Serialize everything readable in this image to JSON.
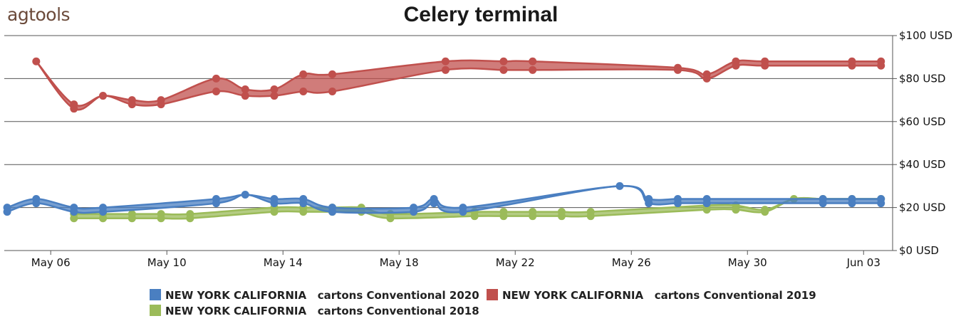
{
  "brand": {
    "logo_text": "agtools"
  },
  "chart_data": {
    "type": "line",
    "title": "Celery terminal",
    "xlabel": "",
    "ylabel": "",
    "x_tick_labels": [
      "May 06",
      "May 10",
      "May 14",
      "May 18",
      "May 22",
      "May 26",
      "May 30",
      "Jun 03"
    ],
    "x_tick_days": [
      6,
      10,
      14,
      18,
      22,
      26,
      30,
      34
    ],
    "x_range_days": [
      4.4,
      35
    ],
    "y_tick_labels": [
      "$0 USD",
      "$20 USD",
      "$40 USD",
      "$60 USD",
      "$80 USD",
      "$100 USD"
    ],
    "y_ticks": [
      0,
      20,
      40,
      60,
      80,
      100
    ],
    "ylim": [
      0,
      100
    ],
    "y_axis_side": "right",
    "grid": "horizontal",
    "legend_position": "bottom",
    "series": [
      {
        "name": "NEW YORK CALIFORNIA   cartons Conventional 2020",
        "color": "#4a7fc1",
        "band": true,
        "points": [
          {
            "day": 4.5,
            "low": 18,
            "high": 20
          },
          {
            "day": 5.5,
            "low": 22,
            "high": 24
          },
          {
            "day": 6.8,
            "low": 18,
            "high": 20
          },
          {
            "day": 7.8,
            "low": 18,
            "high": 20
          },
          {
            "day": 11.7,
            "low": 22,
            "high": 24
          },
          {
            "day": 12.7,
            "low": 26,
            "high": 26
          },
          {
            "day": 13.7,
            "low": 22,
            "high": 24
          },
          {
            "day": 14.7,
            "low": 22,
            "high": 24
          },
          {
            "day": 15.7,
            "low": 18,
            "high": 20
          },
          {
            "day": 18.5,
            "low": 18,
            "high": 20
          },
          {
            "day": 19.2,
            "low": 22,
            "high": 24
          },
          {
            "day": 20.2,
            "low": 18,
            "high": 20
          },
          {
            "day": 25.6,
            "low": 30,
            "high": 30
          },
          {
            "day": 26.6,
            "low": 22,
            "high": 24
          },
          {
            "day": 27.6,
            "low": 22,
            "high": 24
          },
          {
            "day": 28.6,
            "low": 22,
            "high": 24
          },
          {
            "day": 32.6,
            "low": 22,
            "high": 24
          },
          {
            "day": 33.6,
            "low": 22,
            "high": 24
          },
          {
            "day": 34.6,
            "low": 22,
            "high": 24
          }
        ]
      },
      {
        "name": "NEW YORK CALIFORNIA   cartons Conventional 2019",
        "color": "#c0504d",
        "band": true,
        "points": [
          {
            "day": 5.5,
            "low": 88,
            "high": 88
          },
          {
            "day": 6.8,
            "low": 66,
            "high": 68
          },
          {
            "day": 7.8,
            "low": 72,
            "high": 72
          },
          {
            "day": 8.8,
            "low": 68,
            "high": 70
          },
          {
            "day": 9.8,
            "low": 68,
            "high": 70
          },
          {
            "day": 11.7,
            "low": 74,
            "high": 80
          },
          {
            "day": 12.7,
            "low": 72,
            "high": 75
          },
          {
            "day": 13.7,
            "low": 72,
            "high": 75
          },
          {
            "day": 14.7,
            "low": 74,
            "high": 82
          },
          {
            "day": 15.7,
            "low": 74,
            "high": 82
          },
          {
            "day": 19.6,
            "low": 84,
            "high": 88
          },
          {
            "day": 21.6,
            "low": 84,
            "high": 88
          },
          {
            "day": 22.6,
            "low": 84,
            "high": 88
          },
          {
            "day": 27.6,
            "low": 84,
            "high": 85
          },
          {
            "day": 28.6,
            "low": 80,
            "high": 82
          },
          {
            "day": 29.6,
            "low": 86,
            "high": 88
          },
          {
            "day": 30.6,
            "low": 86,
            "high": 88
          },
          {
            "day": 33.6,
            "low": 86,
            "high": 88
          },
          {
            "day": 34.6,
            "low": 86,
            "high": 88
          }
        ]
      },
      {
        "name": "NEW YORK CALIFORNIA   cartons Conventional 2018",
        "color": "#9bbb59",
        "band": true,
        "points": [
          {
            "day": 6.8,
            "low": 15,
            "high": 17
          },
          {
            "day": 7.8,
            "low": 15,
            "high": 17
          },
          {
            "day": 8.8,
            "low": 15,
            "high": 17
          },
          {
            "day": 9.8,
            "low": 15,
            "high": 17
          },
          {
            "day": 10.8,
            "low": 15,
            "high": 17
          },
          {
            "day": 13.7,
            "low": 18,
            "high": 20
          },
          {
            "day": 14.7,
            "low": 18,
            "high": 20
          },
          {
            "day": 15.7,
            "low": 18,
            "high": 20
          },
          {
            "day": 16.7,
            "low": 18,
            "high": 20
          },
          {
            "day": 17.7,
            "low": 15,
            "high": 17
          },
          {
            "day": 20.6,
            "low": 16,
            "high": 18
          },
          {
            "day": 21.6,
            "low": 16,
            "high": 18
          },
          {
            "day": 22.6,
            "low": 16,
            "high": 18
          },
          {
            "day": 23.6,
            "low": 16,
            "high": 18
          },
          {
            "day": 24.6,
            "low": 16,
            "high": 18
          },
          {
            "day": 28.6,
            "low": 19,
            "high": 21
          },
          {
            "day": 29.6,
            "low": 19,
            "high": 21
          },
          {
            "day": 30.6,
            "low": 18,
            "high": 19
          },
          {
            "day": 31.6,
            "low": 24,
            "high": 24
          },
          {
            "day": 32.6,
            "low": 24,
            "high": 24
          },
          {
            "day": 33.6,
            "low": 24,
            "high": 24
          },
          {
            "day": 34.6,
            "low": 24,
            "high": 24
          }
        ]
      }
    ]
  }
}
